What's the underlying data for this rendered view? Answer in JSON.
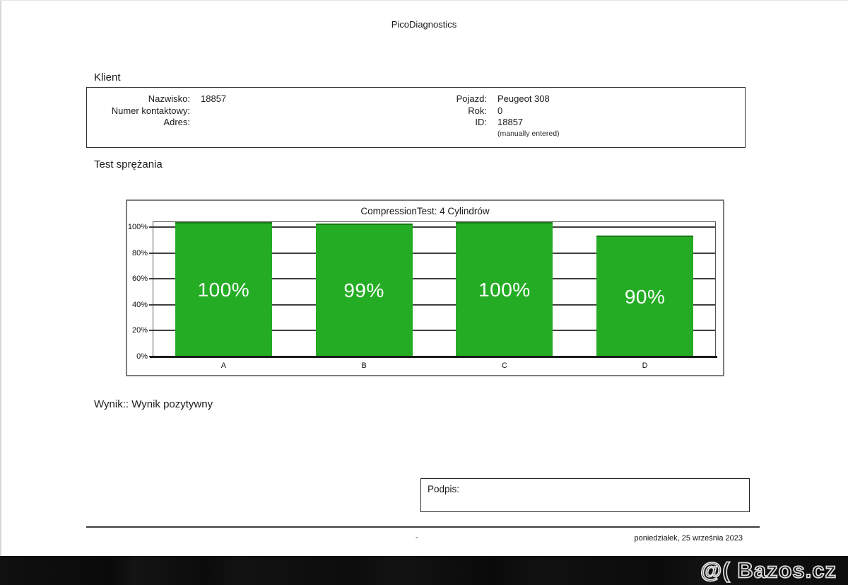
{
  "page": {
    "header_title": "PicoDiagnostics"
  },
  "client": {
    "section_title": "Klient",
    "left_fields": [
      {
        "label": "Nazwisko:",
        "value": "18857"
      },
      {
        "label": "Numer kontaktowy:",
        "value": ""
      },
      {
        "label": "Adres:",
        "value": ""
      }
    ],
    "right_fields": [
      {
        "label": "Pojazd:",
        "value": "Peugeot 308"
      },
      {
        "label": "Rok:",
        "value": "0"
      },
      {
        "label": "ID:",
        "value": "18857"
      }
    ],
    "note": "(manually entered)"
  },
  "test_section": {
    "section_title": "Test sprężania"
  },
  "chart_data": {
    "type": "bar",
    "title": "CompressionTest: 4 Cylindrów",
    "categories": [
      "A",
      "B",
      "C",
      "D"
    ],
    "values": [
      100,
      99,
      100,
      90
    ],
    "bar_labels": [
      "100%",
      "99%",
      "100%",
      "90%"
    ],
    "yticks": [
      0,
      20,
      40,
      60,
      80,
      100
    ],
    "ytick_labels": [
      "0%",
      "20%",
      "40%",
      "60%",
      "80%",
      "100%"
    ],
    "ylim": [
      0,
      104
    ],
    "bar_scale_max": 100,
    "xlabel": "",
    "ylabel": "",
    "grid": true,
    "legend": false,
    "bar_color": "#24ad24",
    "bar_top_edge_color": "#157815",
    "bar_label_color": "#ffffff",
    "grid_color": "#3f3f3f"
  },
  "result": {
    "text": "Wynik:: Wynik pozytywny"
  },
  "signature": {
    "label": "Podpis:"
  },
  "footer": {
    "dash": "-",
    "date": "poniedziałek, 25 września 2023"
  },
  "watermark": {
    "text": "@( Bazos.cz"
  }
}
